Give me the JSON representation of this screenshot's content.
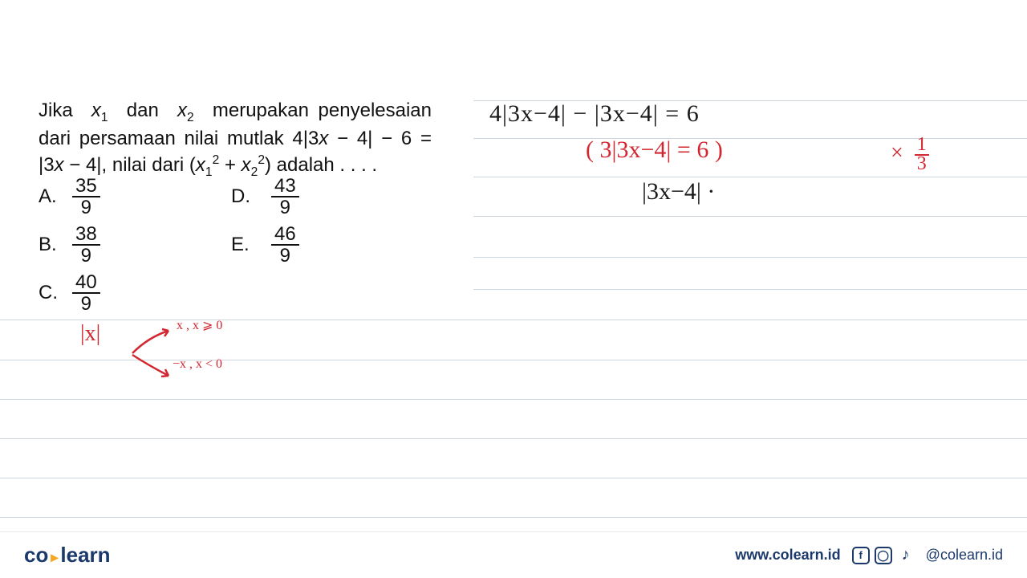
{
  "lines": {
    "positions_full": [
      398,
      448,
      497,
      546,
      595,
      644
    ],
    "positions_short": [
      125,
      172,
      220,
      269,
      320,
      360
    ]
  },
  "problem": {
    "text_html": "Jika &nbsp;<i>x</i><span class='sub'>1</span>&nbsp; dan &nbsp;<i>x</i><span class='sub'>2</span>&nbsp; merupakan penyelesaian dari persamaan nilai mutlak 4|3<i>x</i> − 4| − 6 = |3<i>x</i> − 4|, nilai dari (<i>x</i><span class='sub'>1</span><span class='sup'>2</span> + <i>x</i><span class='sub'>2</span><span class='sup'>2</span>) adalah . . . ."
  },
  "options": {
    "A": {
      "num": "35",
      "den": "9"
    },
    "B": {
      "num": "38",
      "den": "9"
    },
    "C": {
      "num": "40",
      "den": "9"
    },
    "D": {
      "num": "43",
      "den": "9"
    },
    "E": {
      "num": "46",
      "den": "9"
    }
  },
  "handwriting": {
    "line1": "4|3x−4| − |3x−4|  = 6",
    "line2": "( 3|3x−4| = 6 )",
    "line2_mult_prefix": "×",
    "line2_mult_num": "1",
    "line2_mult_den": "3",
    "line3": "|3x−4| ·",
    "abs_label": "|x|",
    "def_top": "x ,  x ⩾ 0",
    "def_bot": "−x ,  x < 0"
  },
  "footer": {
    "logo_co": "co",
    "logo_learn": "learn",
    "website": "www.colearn.id",
    "handle": "@colearn.id"
  },
  "colors": {
    "line": "#cfd6dc",
    "red": "#d22730",
    "brand": "#1b3a6b",
    "accent": "#f5a623"
  }
}
